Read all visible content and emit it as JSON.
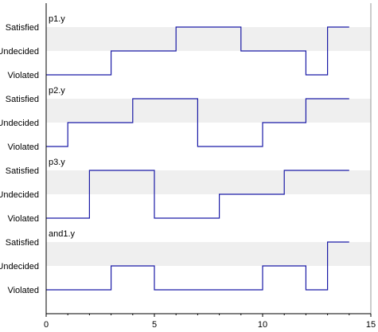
{
  "chart_data": {
    "type": "line",
    "step": true,
    "xlim": [
      0,
      15
    ],
    "x_ticks": [
      "0",
      "5",
      "10",
      "15"
    ],
    "y_categories": [
      "Violated",
      "Undecided",
      "Satisfied"
    ],
    "colors": {
      "line": "#1a1aa6",
      "band": "#efefef",
      "axis": "#000000",
      "frame": "#000000"
    },
    "panels": [
      {
        "title": "p1.y",
        "points": [
          [
            0,
            "Violated"
          ],
          [
            3,
            "Undecided"
          ],
          [
            6,
            "Satisfied"
          ],
          [
            9,
            "Undecided"
          ],
          [
            12,
            "Violated"
          ],
          [
            13,
            "Satisfied"
          ],
          [
            14,
            "Satisfied"
          ]
        ]
      },
      {
        "title": "p2.y",
        "points": [
          [
            0,
            "Violated"
          ],
          [
            1,
            "Undecided"
          ],
          [
            4,
            "Satisfied"
          ],
          [
            7,
            "Violated"
          ],
          [
            10,
            "Undecided"
          ],
          [
            12,
            "Satisfied"
          ],
          [
            14,
            "Satisfied"
          ]
        ]
      },
      {
        "title": "p3.y",
        "points": [
          [
            0,
            "Violated"
          ],
          [
            2,
            "Satisfied"
          ],
          [
            5,
            "Violated"
          ],
          [
            8,
            "Undecided"
          ],
          [
            11,
            "Satisfied"
          ],
          [
            14,
            "Satisfied"
          ]
        ]
      },
      {
        "title": "and1.y",
        "points": [
          [
            0,
            "Violated"
          ],
          [
            3,
            "Undecided"
          ],
          [
            5,
            "Violated"
          ],
          [
            10,
            "Undecided"
          ],
          [
            12,
            "Violated"
          ],
          [
            13,
            "Satisfied"
          ],
          [
            14,
            "Satisfied"
          ]
        ]
      }
    ]
  }
}
